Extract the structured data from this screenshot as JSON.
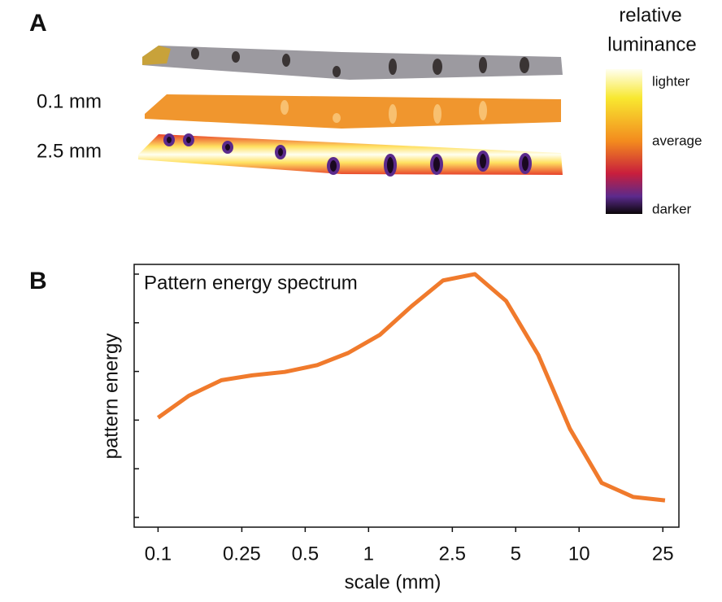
{
  "panel_a": {
    "label": "A",
    "row_labels": [
      "0.1 mm",
      "2.5 mm"
    ],
    "colorbar": {
      "title_lines": [
        "relative",
        "luminance"
      ],
      "top": "lighter",
      "middle": "average",
      "bottom": "darker"
    }
  },
  "panel_b": {
    "label": "B"
  },
  "chart_data": {
    "type": "line",
    "title": "Pattern energy spectrum",
    "x_label": "scale (mm)",
    "y_label": "pattern energy",
    "x": [
      0.1,
      0.14,
      0.2,
      0.28,
      0.4,
      0.57,
      0.8,
      1.13,
      1.6,
      2.26,
      3.2,
      4.5,
      6.4,
      9.05,
      12.8,
      18.1,
      25.6
    ],
    "series": [
      {
        "color": "#f07a2c",
        "values": [
          2.05,
          2.5,
          2.82,
          2.92,
          2.99,
          3.13,
          3.38,
          3.75,
          4.34,
          4.87,
          5.0,
          4.45,
          3.34,
          1.82,
          0.71,
          0.42,
          0.35
        ]
      }
    ],
    "x_log": true,
    "xlim": [
      0.077,
      29.8
    ],
    "xticks": [
      0.1,
      0.25,
      0.5,
      1,
      2.5,
      5,
      10,
      25
    ],
    "ylim": [
      -0.2,
      5.2
    ],
    "yticks": [
      0,
      1,
      2,
      3,
      4,
      5
    ]
  }
}
